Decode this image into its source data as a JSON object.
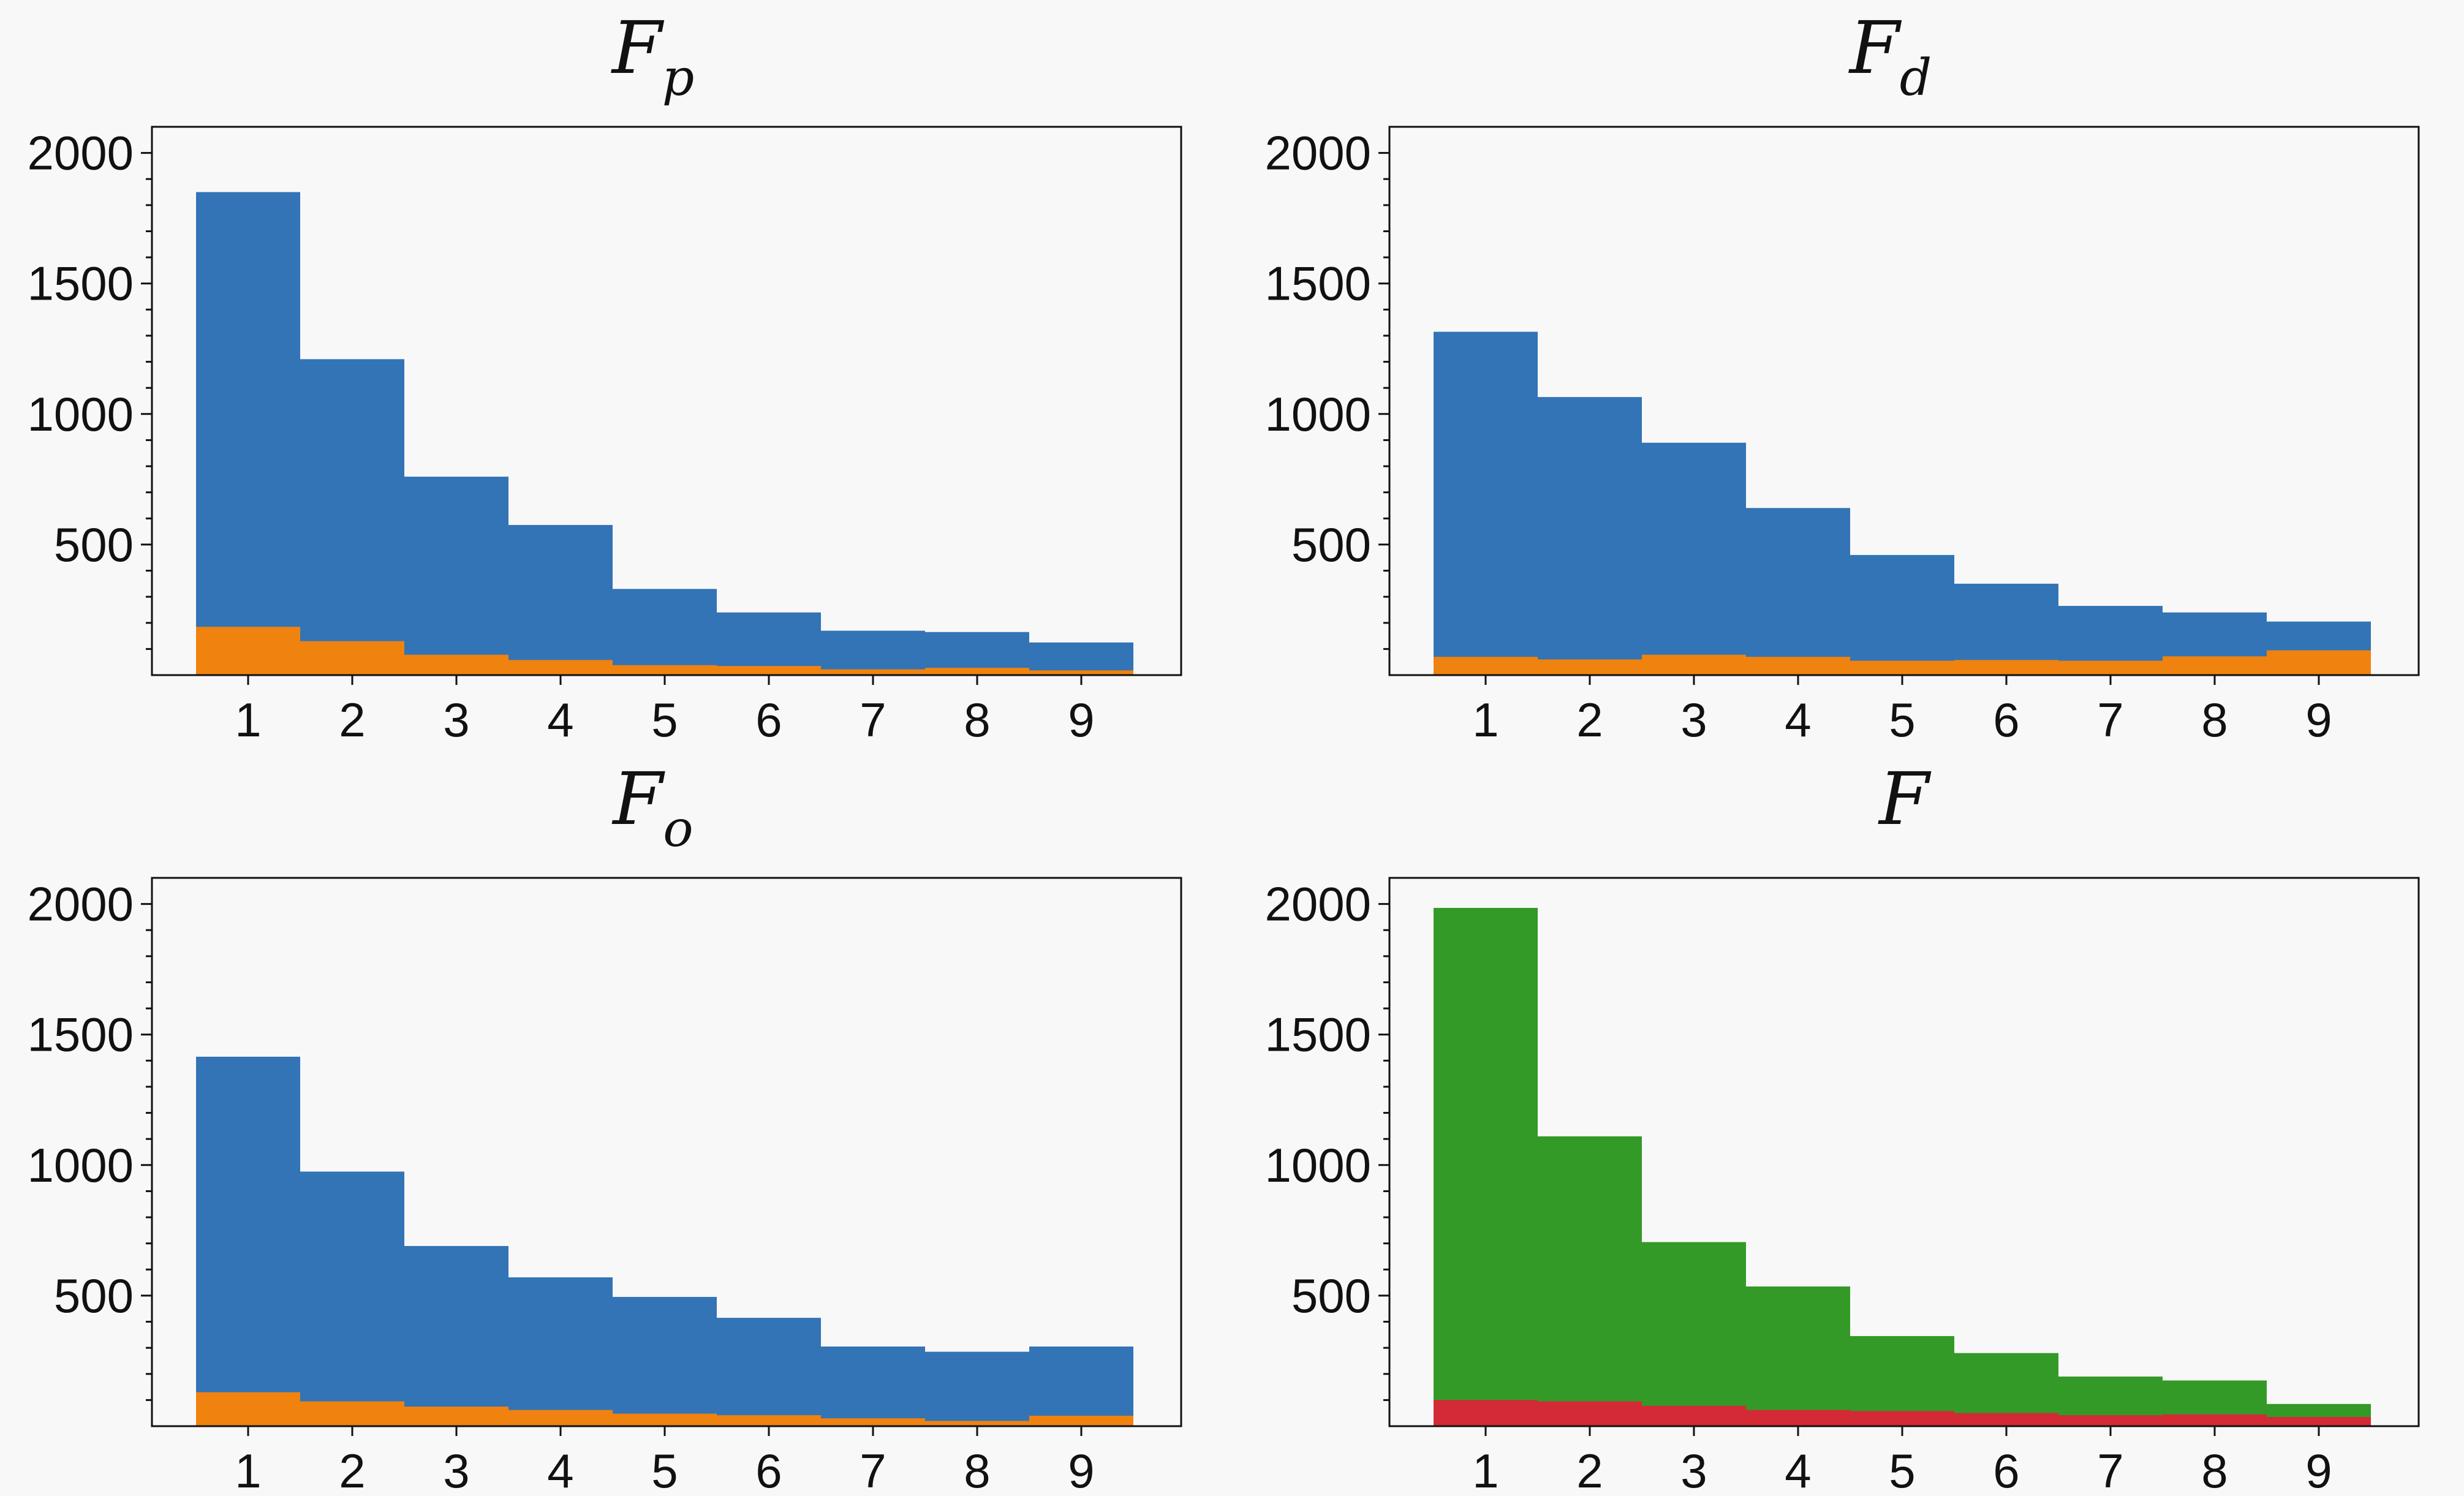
{
  "chart_data": [
    {
      "type": "bar",
      "title": "F",
      "title_subscript": "p",
      "categories": [
        "1",
        "2",
        "3",
        "4",
        "5",
        "6",
        "7",
        "8",
        "9"
      ],
      "series": [
        {
          "color": "#3274b5",
          "values": [
            1850,
            1210,
            760,
            575,
            330,
            240,
            170,
            165,
            125
          ]
        },
        {
          "color": "#f0820f",
          "values": [
            185,
            130,
            78,
            58,
            38,
            35,
            22,
            28,
            18
          ]
        }
      ],
      "ylim": [
        0,
        2100
      ],
      "yticks": [
        500,
        1000,
        1500,
        2000
      ],
      "grid": false
    },
    {
      "type": "bar",
      "title": "F",
      "title_subscript": "d",
      "categories": [
        "1",
        "2",
        "3",
        "4",
        "5",
        "6",
        "7",
        "8",
        "9"
      ],
      "series": [
        {
          "color": "#3274b5",
          "values": [
            1315,
            1065,
            890,
            640,
            460,
            350,
            265,
            240,
            205
          ]
        },
        {
          "color": "#f0820f",
          "values": [
            70,
            60,
            78,
            70,
            55,
            58,
            55,
            72,
            95
          ]
        }
      ],
      "ylim": [
        0,
        2100
      ],
      "yticks": [
        500,
        1000,
        1500,
        2000
      ],
      "grid": false
    },
    {
      "type": "bar",
      "title": "F",
      "title_subscript": "o",
      "categories": [
        "1",
        "2",
        "3",
        "4",
        "5",
        "6",
        "7",
        "8",
        "9"
      ],
      "series": [
        {
          "color": "#3274b5",
          "values": [
            1415,
            975,
            690,
            570,
            495,
            415,
            305,
            285,
            305
          ]
        },
        {
          "color": "#f0820f",
          "values": [
            130,
            95,
            75,
            62,
            48,
            42,
            30,
            20,
            40
          ]
        }
      ],
      "ylim": [
        0,
        2100
      ],
      "yticks": [
        500,
        1000,
        1500,
        2000
      ],
      "grid": false
    },
    {
      "type": "bar",
      "title": "F",
      "title_subscript": "",
      "categories": [
        "1",
        "2",
        "3",
        "4",
        "5",
        "6",
        "7",
        "8",
        "9"
      ],
      "series": [
        {
          "color": "#339a27",
          "values": [
            1985,
            1110,
            705,
            535,
            345,
            280,
            190,
            175,
            85
          ]
        },
        {
          "color": "#d42a35",
          "values": [
            100,
            95,
            78,
            62,
            58,
            50,
            42,
            45,
            35
          ]
        }
      ],
      "ylim": [
        0,
        2100
      ],
      "yticks": [
        500,
        1000,
        1500,
        2000
      ],
      "grid": false
    }
  ]
}
